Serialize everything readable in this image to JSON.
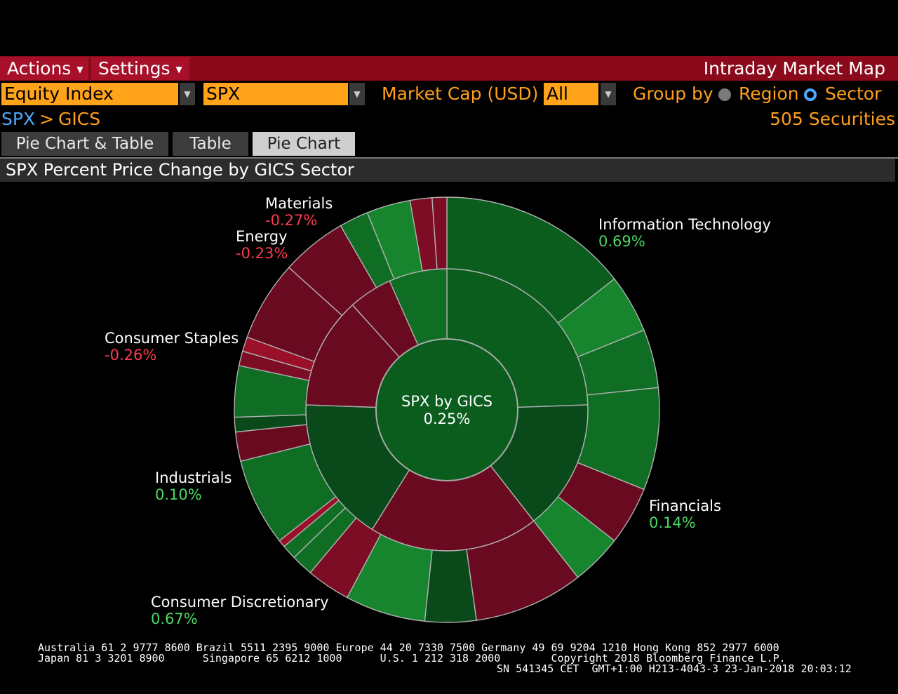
{
  "menu": {
    "actions_label": "Actions",
    "settings_label": "Settings",
    "app_title": "Intraday Market Map"
  },
  "filters": {
    "asset_type": "Equity Index",
    "index": "SPX",
    "market_cap_label": "Market Cap (USD)",
    "market_cap_value": "All",
    "group_by_label": "Group by",
    "group_options": [
      "Region",
      "Sector"
    ],
    "group_selected": "Sector"
  },
  "breadcrumb": {
    "root": "SPX",
    "separator": ">",
    "leaf": "GICS"
  },
  "securities_count": "505 Securities",
  "tabs": [
    "Pie Chart & Table",
    "Table",
    "Pie Chart"
  ],
  "active_tab": "Pie Chart",
  "panel_title": "SPX Percent Price Change by GICS Sector",
  "colors": {
    "positive_text": "#4cd964",
    "negative_text": "#ff3a4f",
    "pos_dark": "#0b5d1e",
    "neg_dark": "#6a0a20",
    "accent_orange": "#ffa31a",
    "header_red": "#8a0a1c"
  },
  "chart_data": {
    "type": "pie",
    "center": {
      "title": "SPX by GICS",
      "value": "0.25%"
    },
    "sectors": [
      {
        "name": "Information Technology",
        "change": "0.69%",
        "sign": "pos"
      },
      {
        "name": "Financials",
        "change": "0.14%",
        "sign": "pos"
      },
      {
        "name": "Consumer Discretionary",
        "change": "0.67%",
        "sign": "pos"
      },
      {
        "name": "Industrials",
        "change": "0.10%",
        "sign": "pos"
      },
      {
        "name": "Consumer Staples",
        "change": "-0.26%",
        "sign": "neg"
      },
      {
        "name": "Energy",
        "change": "-0.23%",
        "sign": "neg"
      },
      {
        "name": "Materials",
        "change": "-0.27%",
        "sign": "neg"
      }
    ]
  },
  "footer": {
    "line1": "Australia 61 2 9777 8600 Brazil 5511 2395 9000 Europe 44 20 7330 7500 Germany 49 69 9204 1210 Hong Kong 852 2977 6000",
    "line2": "Japan 81 3 3201 8900      Singapore 65 6212 1000      U.S. 1 212 318 2000        Copyright 2018 Bloomberg Finance L.P.",
    "line3": "SN 541345 CET  GMT+1:00 H213-4043-3 23-Jan-2018 20:03:12"
  }
}
